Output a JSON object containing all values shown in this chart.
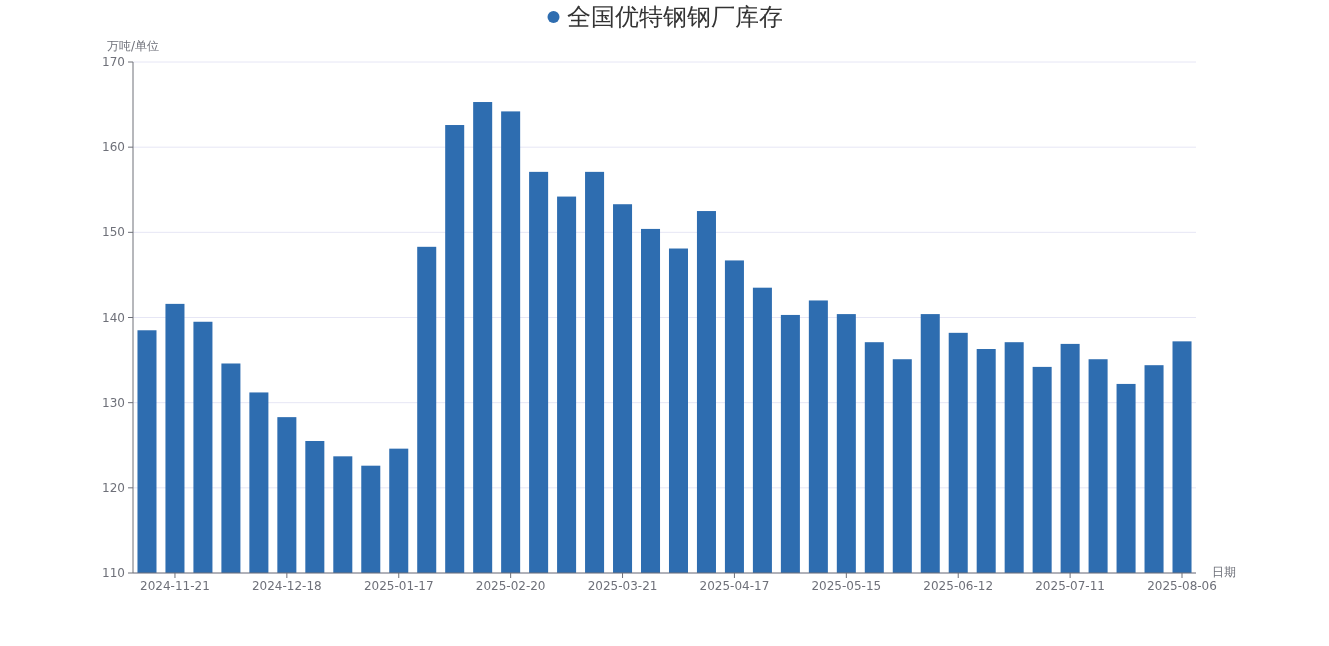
{
  "chart_data": {
    "type": "bar",
    "xlabel": "日期",
    "ylabel": "万吨/单位",
    "categories": [
      null,
      "2024-11-21",
      null,
      null,
      null,
      "2024-12-18",
      null,
      null,
      null,
      "2025-01-17",
      null,
      null,
      null,
      "2025-02-20",
      null,
      null,
      null,
      "2025-03-21",
      null,
      null,
      null,
      "2025-04-17",
      null,
      null,
      null,
      "2025-05-15",
      null,
      null,
      null,
      "2025-06-12",
      null,
      null,
      null,
      "2025-07-11",
      null,
      null,
      null,
      "2025-08-06"
    ],
    "series": [
      {
        "name": "全国优特钢钢厂库存",
        "color": "#2e6db0",
        "values": [
          138.5,
          141.6,
          139.5,
          134.6,
          131.2,
          128.3,
          125.5,
          123.7,
          122.6,
          124.6,
          148.3,
          162.6,
          165.3,
          164.2,
          157.1,
          154.2,
          157.1,
          153.3,
          150.4,
          148.1,
          152.5,
          146.7,
          143.5,
          140.3,
          142.0,
          140.4,
          137.1,
          135.1,
          140.4,
          138.2,
          136.3,
          137.1,
          134.2,
          136.9,
          135.1,
          132.2,
          134.4,
          137.2
        ]
      }
    ],
    "ylim": [
      110,
      170
    ],
    "yticks": [
      110,
      120,
      130,
      140,
      150,
      160,
      170
    ],
    "grid": "y",
    "legend": "top"
  }
}
